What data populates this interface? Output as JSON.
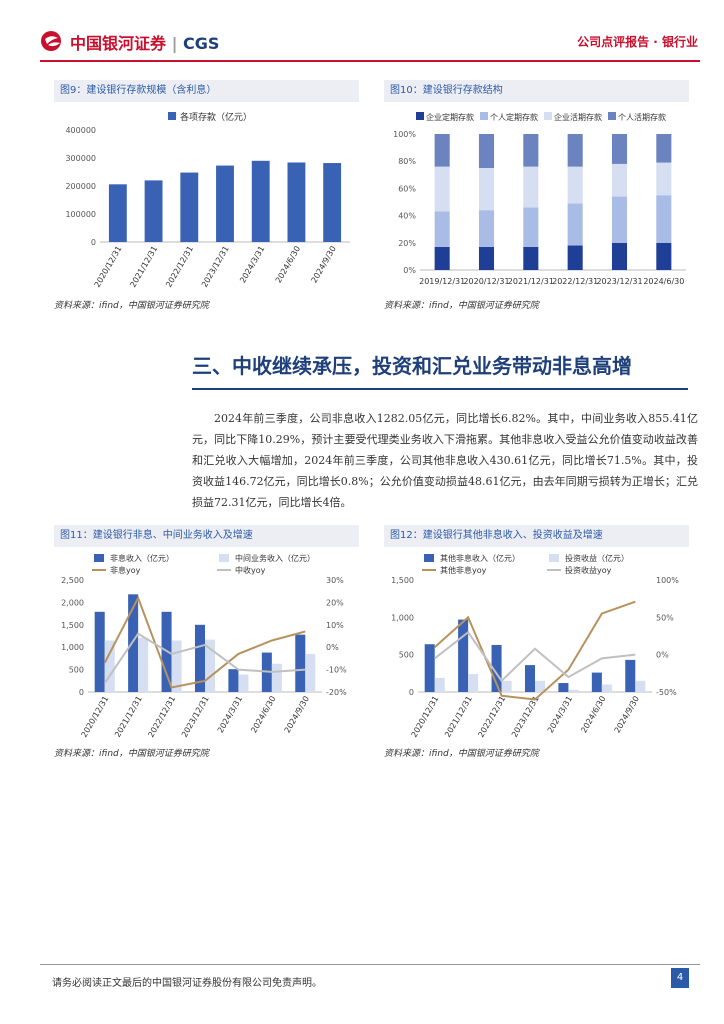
{
  "header": {
    "brand": "中国银河证券",
    "brand_en": "CGS",
    "report_type": "公司点评报告 · 银行业"
  },
  "fig9": {
    "title": "图9：建设银行存款规模（含利息）",
    "source": "资料来源：ifind，中国银河证券研究院",
    "chart_data": {
      "type": "bar",
      "categories": [
        "2020/12/31",
        "2021/12/31",
        "2022/12/31",
        "2023/12/31",
        "2024/3/31",
        "2024/6/30",
        "2024/9/30"
      ],
      "series": [
        {
          "name": "各项存款（亿元）",
          "values": [
            206000,
            220000,
            248000,
            273000,
            290000,
            284000,
            282000
          ]
        }
      ],
      "ylim": [
        0,
        400000
      ],
      "yticks": [
        "0",
        "100000",
        "200000",
        "300000",
        "400000"
      ],
      "color": "#3a62b4"
    }
  },
  "fig10": {
    "title": "图10：建设银行存款结构",
    "source": "资料来源：ifind，中国银河证券研究院",
    "chart_data": {
      "type": "bar",
      "stacked": true,
      "categories": [
        "2019/12/31",
        "2020/12/31",
        "2021/12/31",
        "2022/12/31",
        "2023/12/31",
        "2024/6/30"
      ],
      "series": [
        {
          "name": "企业定期存款",
          "values": [
            17,
            17,
            17,
            18,
            20,
            20
          ],
          "color": "#1f3f97"
        },
        {
          "name": "个人定期存款",
          "values": [
            26,
            27,
            29,
            31,
            34,
            35
          ],
          "color": "#a9bce6"
        },
        {
          "name": "企业活期存款",
          "values": [
            33,
            31,
            30,
            27,
            24,
            24
          ],
          "color": "#d6dff1"
        },
        {
          "name": "个人活期存款",
          "values": [
            24,
            25,
            24,
            24,
            22,
            21
          ],
          "color": "#6b84bf"
        }
      ],
      "yticks": [
        "0%",
        "20%",
        "40%",
        "60%",
        "80%",
        "100%"
      ]
    }
  },
  "section": {
    "title": "三、中收继续承压，投资和汇兑业务带动非息高增",
    "paragraph": "2024年前三季度，公司非息收入1282.05亿元，同比增长6.82%。其中，中间业务收入855.41亿元，同比下降10.29%，预计主要受代理类业务收入下滑拖累。其他非息收入受益公允价值变动收益改善和汇兑收入大幅增加，2024年前三季度，公司其他非息收入430.61亿元，同比增长71.5%。其中，投资收益146.72亿元，同比增长0.8%；公允价值变动损益48.61亿元，由去年同期亏损转为正增长；汇兑损益72.31亿元，同比增长4倍。"
  },
  "fig11": {
    "title": "图11：建设银行非息、中间业务收入及增速",
    "source": "资料来源：ifind，中国银河证券研究院",
    "chart_data": {
      "type": "bar",
      "categories": [
        "2020/12/31",
        "2021/12/31",
        "2022/12/31",
        "2023/12/31",
        "2024/3/31",
        "2024/6/30",
        "2024/9/30"
      ],
      "series": [
        {
          "name": "非息收入（亿元）",
          "values": [
            1790,
            2180,
            1790,
            1500,
            510,
            880,
            1280
          ],
          "color": "#3a62b4",
          "axis": "left"
        },
        {
          "name": "中间业务收入（亿元）",
          "values": [
            1150,
            1210,
            1150,
            1170,
            390,
            630,
            850
          ],
          "color": "#d6dff1",
          "axis": "left"
        },
        {
          "name": "非息yoy",
          "values": [
            -7,
            22,
            -18,
            -15,
            -3,
            3,
            7
          ],
          "color": "#b8925e",
          "axis": "right",
          "line": true
        },
        {
          "name": "中收yoy",
          "values": [
            -16,
            6,
            -3,
            1,
            -10,
            -11,
            -10
          ],
          "color": "#c0c0c0",
          "axis": "right",
          "line": true
        }
      ],
      "yticks_left": [
        "0",
        "500",
        "1,000",
        "1,500",
        "2,000",
        "2,500"
      ],
      "yticks_right": [
        "-20%",
        "-10%",
        "0%",
        "10%",
        "20%",
        "30%"
      ]
    }
  },
  "fig12": {
    "title": "图12：建设银行其他非息收入、投资收益及增速",
    "source": "资料来源：ifind，中国银河证券研究院",
    "chart_data": {
      "type": "bar",
      "categories": [
        "2020/12/31",
        "2021/12/31",
        "2022/12/31",
        "2023/12/31",
        "2024/3/31",
        "2024/6/30",
        "2024/9/30"
      ],
      "series": [
        {
          "name": "其他非息收入（亿元）",
          "values": [
            640,
            970,
            630,
            360,
            120,
            260,
            430
          ],
          "color": "#3a62b4",
          "axis": "left"
        },
        {
          "name": "投资收益（亿元）",
          "values": [
            190,
            240,
            150,
            150,
            30,
            100,
            150
          ],
          "color": "#d6dff1",
          "axis": "left"
        },
        {
          "name": "其他非息yoy",
          "values": [
            10,
            50,
            -55,
            -60,
            -20,
            55,
            71
          ],
          "color": "#b8925e",
          "axis": "right",
          "line": true
        },
        {
          "name": "投资收益yoy",
          "values": [
            -5,
            30,
            -35,
            8,
            -30,
            -5,
            0
          ],
          "color": "#c0c0c0",
          "axis": "right",
          "line": true
        }
      ],
      "yticks_left": [
        "0",
        "500",
        "1,000",
        "1,500"
      ],
      "yticks_right": [
        "-50%",
        "0%",
        "50%",
        "100%"
      ]
    }
  },
  "footer": {
    "disclaimer": "请务必阅读正文最后的中国银河证券股份有限公司免责声明。",
    "page": "4"
  }
}
